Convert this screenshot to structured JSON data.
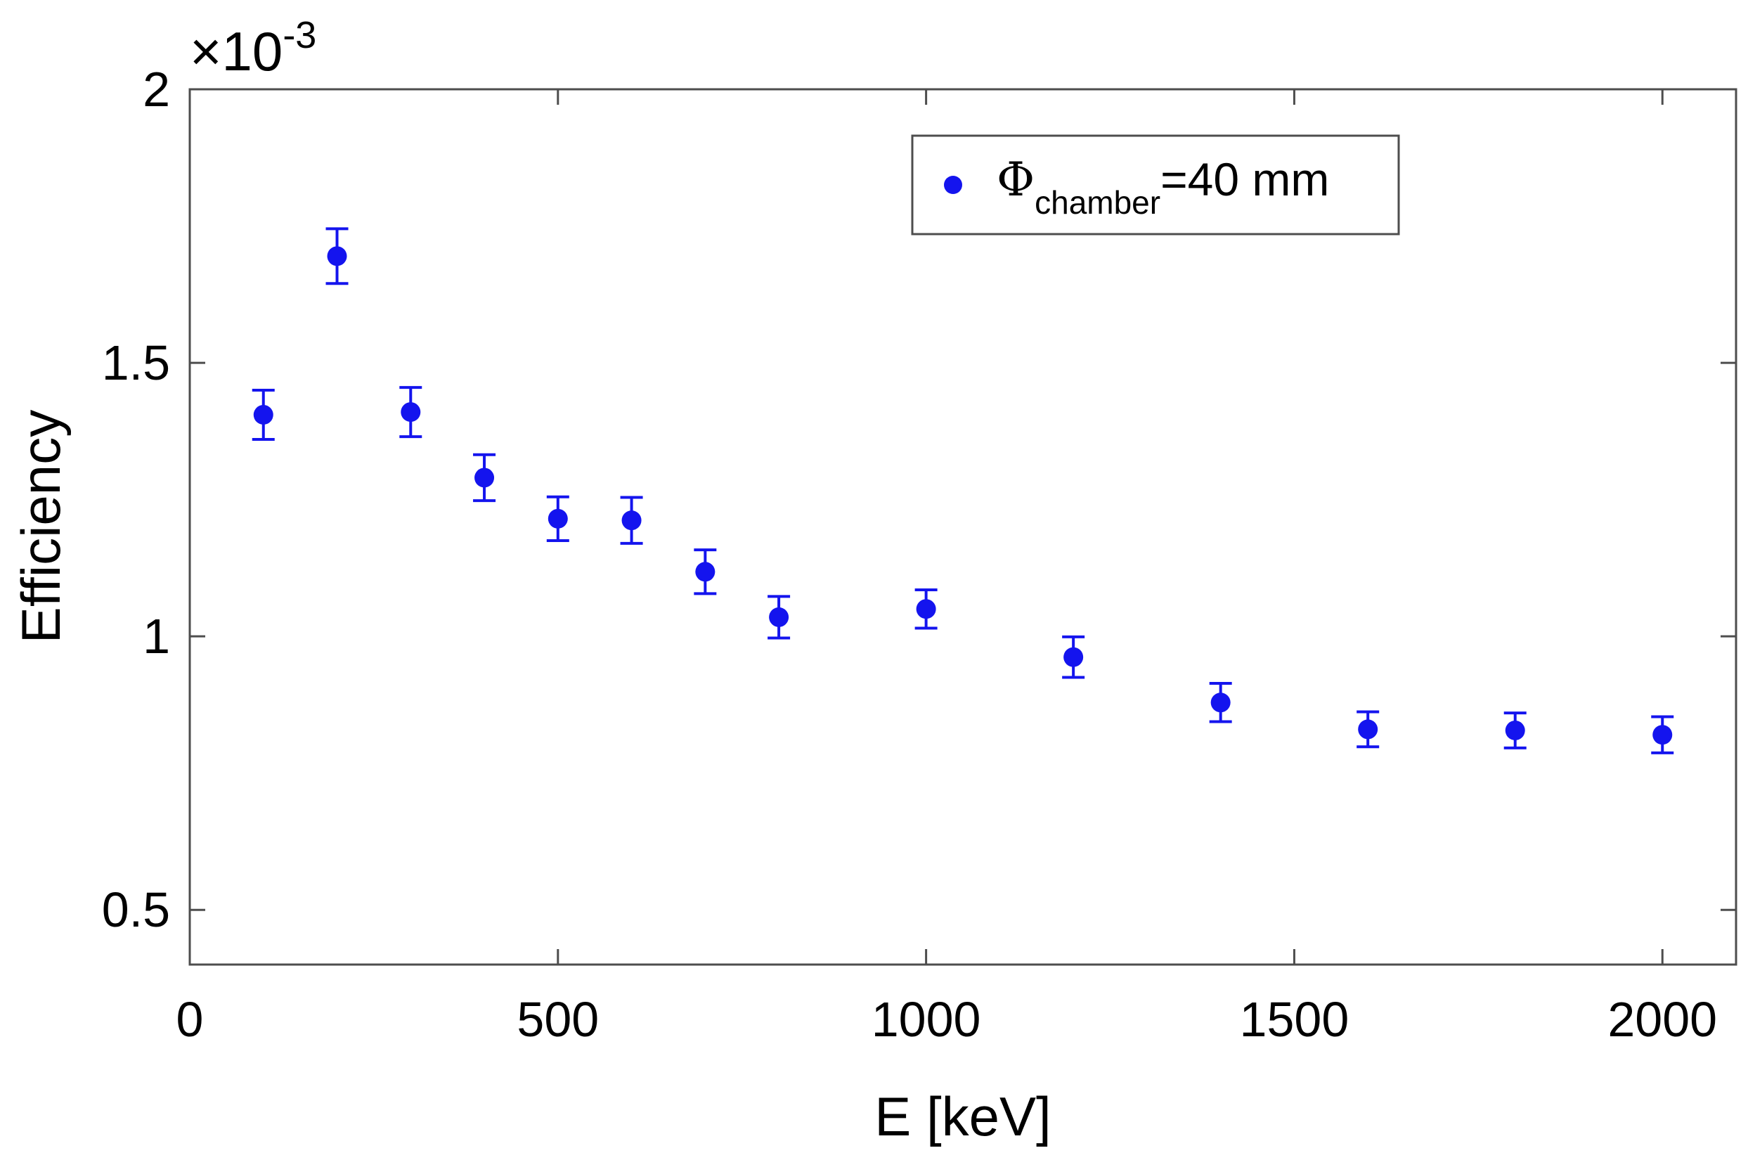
{
  "chart_data": {
    "type": "scatter",
    "title": "",
    "xlabel": "E [keV]",
    "ylabel": "Efficiency",
    "xlim": [
      0,
      2100
    ],
    "ylim": [
      0.4,
      2.0
    ],
    "xticks": [
      0,
      500,
      1000,
      1500,
      2000
    ],
    "xtick_labels": [
      "0",
      "500",
      "1000",
      "1500",
      "2000"
    ],
    "yticks": [
      0.5,
      1.0,
      1.5,
      2.0
    ],
    "ytick_labels": [
      "0.5",
      "1",
      "1.5",
      "2"
    ],
    "y_multiplier": {
      "base": "×10",
      "exponent": "-3"
    },
    "grid": false,
    "legend_position": "top-right",
    "series": [
      {
        "name": "Φchamber=40 mm",
        "legend_symbol": "Φ",
        "legend_subscript": "chamber",
        "legend_suffix": "=40 mm",
        "color": "#1414ee",
        "x": [
          100,
          200,
          300,
          400,
          500,
          600,
          700,
          800,
          1000,
          1200,
          1400,
          1600,
          1800,
          2000
        ],
        "y": [
          1.405,
          1.695,
          1.41,
          1.29,
          1.215,
          1.212,
          1.118,
          1.035,
          1.05,
          0.962,
          0.879,
          0.83,
          0.828,
          0.82
        ],
        "error": [
          0.045,
          0.05,
          0.045,
          0.042,
          0.04,
          0.042,
          0.04,
          0.038,
          0.035,
          0.037,
          0.035,
          0.032,
          0.032,
          0.033
        ]
      }
    ]
  }
}
